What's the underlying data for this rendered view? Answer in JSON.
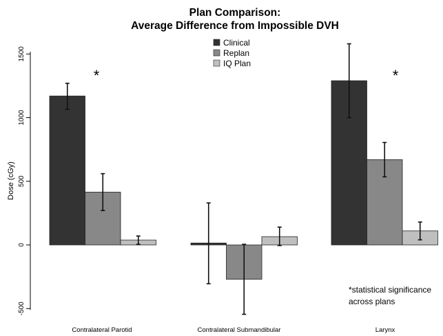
{
  "chart_data": {
    "type": "bar",
    "title_line1": "Plan Comparison:",
    "title_line2": "Average Difference from Impossible DVH",
    "ylabel": "Dose (cGy)",
    "xlabel": "",
    "ylim": [
      -500,
      1500
    ],
    "yticks": [
      -500,
      0,
      500,
      1000,
      1500
    ],
    "ytick_labels": [
      "-500",
      "0",
      "500",
      "1000",
      "1500"
    ],
    "grid": false,
    "legend_position": "top-center",
    "categories": [
      "Contralateral Parotid",
      "Contralateral Submandibular",
      "Larynx"
    ],
    "series": [
      {
        "name": "Clinical",
        "color": "#333333",
        "values": [
          1170,
          15,
          1290
        ],
        "err_low": [
          1065,
          -305,
          1000
        ],
        "err_high": [
          1270,
          330,
          1580
        ]
      },
      {
        "name": "Replan",
        "color": "#888888",
        "values": [
          415,
          -270,
          670
        ],
        "err_low": [
          270,
          -545,
          535
        ],
        "err_high": [
          560,
          5,
          805
        ]
      },
      {
        "name": "IQ Plan",
        "color": "#bfbfbf",
        "values": [
          38,
          65,
          110
        ],
        "err_low": [
          5,
          -5,
          40
        ],
        "err_high": [
          70,
          140,
          180
        ]
      }
    ],
    "significance_marker": "*",
    "significant_categories": [
      0,
      2
    ],
    "annotation_line1": "*statistical significance",
    "annotation_line2": "across plans"
  }
}
